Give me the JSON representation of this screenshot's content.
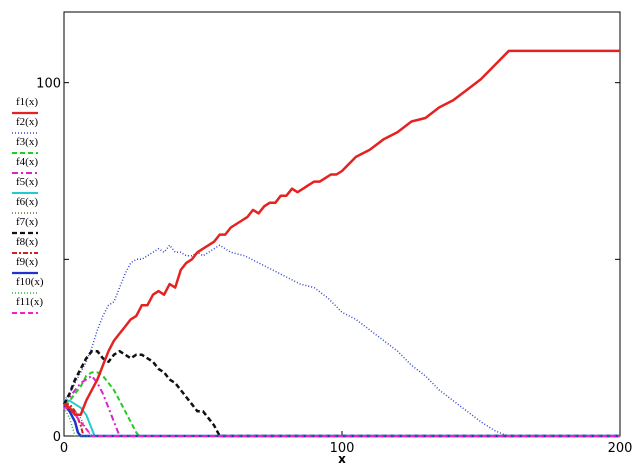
{
  "chart_data": {
    "type": "line",
    "title": "",
    "xlabel": "x",
    "ylabel": "",
    "xlim": [
      0,
      200
    ],
    "ylim": [
      0,
      120
    ],
    "x_ticks": [
      {
        "value": 0,
        "label": "0"
      },
      {
        "value": 100,
        "label": "100"
      },
      {
        "value": 200,
        "label": "200"
      }
    ],
    "y_ticks": [
      {
        "value": 0,
        "label": "0"
      },
      {
        "value": 50,
        "label": ""
      },
      {
        "value": 100,
        "label": "100"
      }
    ],
    "grid": false,
    "legend_position": "left",
    "series": [
      {
        "name": "f1(x)",
        "color": "#e52222",
        "dash": "solid",
        "width": 2.5,
        "x": [
          0,
          2,
          4,
          6,
          8,
          10,
          12,
          14,
          16,
          18,
          20,
          22,
          24,
          26,
          28,
          30,
          32,
          34,
          36,
          38,
          40,
          42,
          44,
          46,
          48,
          50,
          52,
          54,
          56,
          58,
          60,
          62,
          64,
          66,
          68,
          70,
          72,
          74,
          76,
          78,
          80,
          82,
          84,
          86,
          88,
          90,
          92,
          94,
          96,
          98,
          100,
          105,
          110,
          115,
          120,
          125,
          130,
          135,
          140,
          145,
          150,
          155,
          160,
          170,
          180,
          190,
          200
        ],
        "y": [
          9,
          8,
          6,
          6,
          10,
          13,
          16,
          20,
          24,
          27,
          29,
          31,
          33,
          34,
          37,
          37,
          40,
          41,
          40,
          43,
          42,
          47,
          49,
          50,
          52,
          53,
          54,
          55,
          57,
          57,
          59,
          60,
          61,
          62,
          64,
          63,
          65,
          66,
          66,
          68,
          68,
          70,
          69,
          70,
          71,
          72,
          72,
          73,
          74,
          74,
          75,
          79,
          81,
          84,
          86,
          89,
          90,
          93,
          95,
          98,
          101,
          105,
          109,
          109,
          109,
          109,
          109
        ]
      },
      {
        "name": "f2(x)",
        "color": "#3344cc",
        "dash": "1,2",
        "width": 1.5,
        "x": [
          0,
          2,
          4,
          6,
          8,
          10,
          12,
          14,
          16,
          18,
          20,
          22,
          24,
          26,
          28,
          30,
          32,
          34,
          36,
          38,
          40,
          42,
          44,
          46,
          48,
          50,
          52,
          54,
          56,
          58,
          60,
          65,
          70,
          75,
          80,
          85,
          90,
          95,
          100,
          105,
          110,
          115,
          120,
          125,
          130,
          135,
          140,
          145,
          150,
          155,
          158,
          160,
          200
        ],
        "y": [
          10,
          12,
          15,
          18,
          21,
          25,
          30,
          34,
          37,
          38,
          42,
          46,
          49,
          50,
          50,
          51,
          52,
          53,
          52,
          54,
          52,
          52,
          51,
          51,
          52,
          51,
          52,
          53,
          54,
          53,
          52,
          51,
          49,
          47,
          45,
          43,
          42,
          39,
          35,
          33,
          30,
          27,
          24,
          20,
          17,
          13,
          10,
          7,
          4,
          1.5,
          0.5,
          0,
          0
        ]
      },
      {
        "name": "f3(x)",
        "color": "#22cc22",
        "dash": "5,3",
        "width": 2,
        "x": [
          0,
          2,
          4,
          6,
          8,
          10,
          12,
          14,
          16,
          18,
          20,
          22,
          24,
          26,
          27,
          200
        ],
        "y": [
          9,
          10,
          12,
          14,
          17,
          18,
          18,
          17,
          15,
          13,
          10,
          7,
          4,
          1,
          0,
          0
        ]
      },
      {
        "name": "f4(x)",
        "color": "#dd22cc",
        "dash": "6,3,2,3",
        "width": 2,
        "x": [
          0,
          2,
          4,
          6,
          8,
          10,
          12,
          14,
          16,
          18,
          20,
          200
        ],
        "y": [
          9,
          11,
          13,
          15,
          16,
          17,
          15,
          12,
          8,
          4,
          0,
          0
        ]
      },
      {
        "name": "f5(x)",
        "color": "#22cccc",
        "dash": "solid",
        "width": 2,
        "x": [
          0,
          2,
          4,
          6,
          8,
          10,
          11,
          200
        ],
        "y": [
          10,
          10,
          9,
          8,
          6,
          2,
          0,
          0
        ]
      },
      {
        "name": "f6(x)",
        "color": "#776633",
        "dash": "1,2",
        "width": 1.5,
        "x": [
          0,
          2,
          4,
          6,
          8,
          10,
          200
        ],
        "y": [
          9,
          8,
          7,
          5,
          2,
          0,
          0
        ]
      },
      {
        "name": "f7(x)",
        "color": "#111111",
        "dash": "5,3",
        "width": 2.5,
        "x": [
          0,
          2,
          4,
          6,
          8,
          10,
          12,
          14,
          16,
          18,
          20,
          22,
          24,
          26,
          28,
          30,
          32,
          34,
          36,
          38,
          40,
          42,
          44,
          46,
          48,
          50,
          52,
          54,
          56,
          200
        ],
        "y": [
          9,
          12,
          16,
          19,
          22,
          24,
          24,
          22,
          21,
          23,
          24,
          23,
          22,
          23,
          23,
          22,
          21,
          19,
          18,
          16,
          15,
          13,
          11,
          9,
          7,
          7,
          5,
          3,
          0,
          0
        ]
      },
      {
        "name": "f8(x)",
        "color": "#cc2222",
        "dash": "5,2,2,2",
        "width": 2,
        "x": [
          0,
          2,
          4,
          6,
          7,
          200
        ],
        "y": [
          9,
          9,
          7,
          3,
          0,
          0
        ]
      },
      {
        "name": "f9(x)",
        "color": "#2233cc",
        "dash": "solid",
        "width": 2.5,
        "x": [
          0,
          2,
          4,
          5,
          6,
          200
        ],
        "y": [
          9,
          7,
          4,
          1,
          0,
          0
        ]
      },
      {
        "name": "f10(x)",
        "color": "#22bb22",
        "dash": "1,2",
        "width": 1.5,
        "x": [
          0,
          2,
          4,
          200
        ],
        "y": [
          8,
          5,
          0,
          0
        ]
      },
      {
        "name": "f11(x)",
        "color": "#ee22cc",
        "dash": "5,3",
        "width": 2,
        "x": [
          0,
          2,
          4,
          6,
          8,
          10,
          200
        ],
        "y": [
          8,
          8,
          6,
          4,
          2,
          0,
          0
        ]
      }
    ]
  }
}
